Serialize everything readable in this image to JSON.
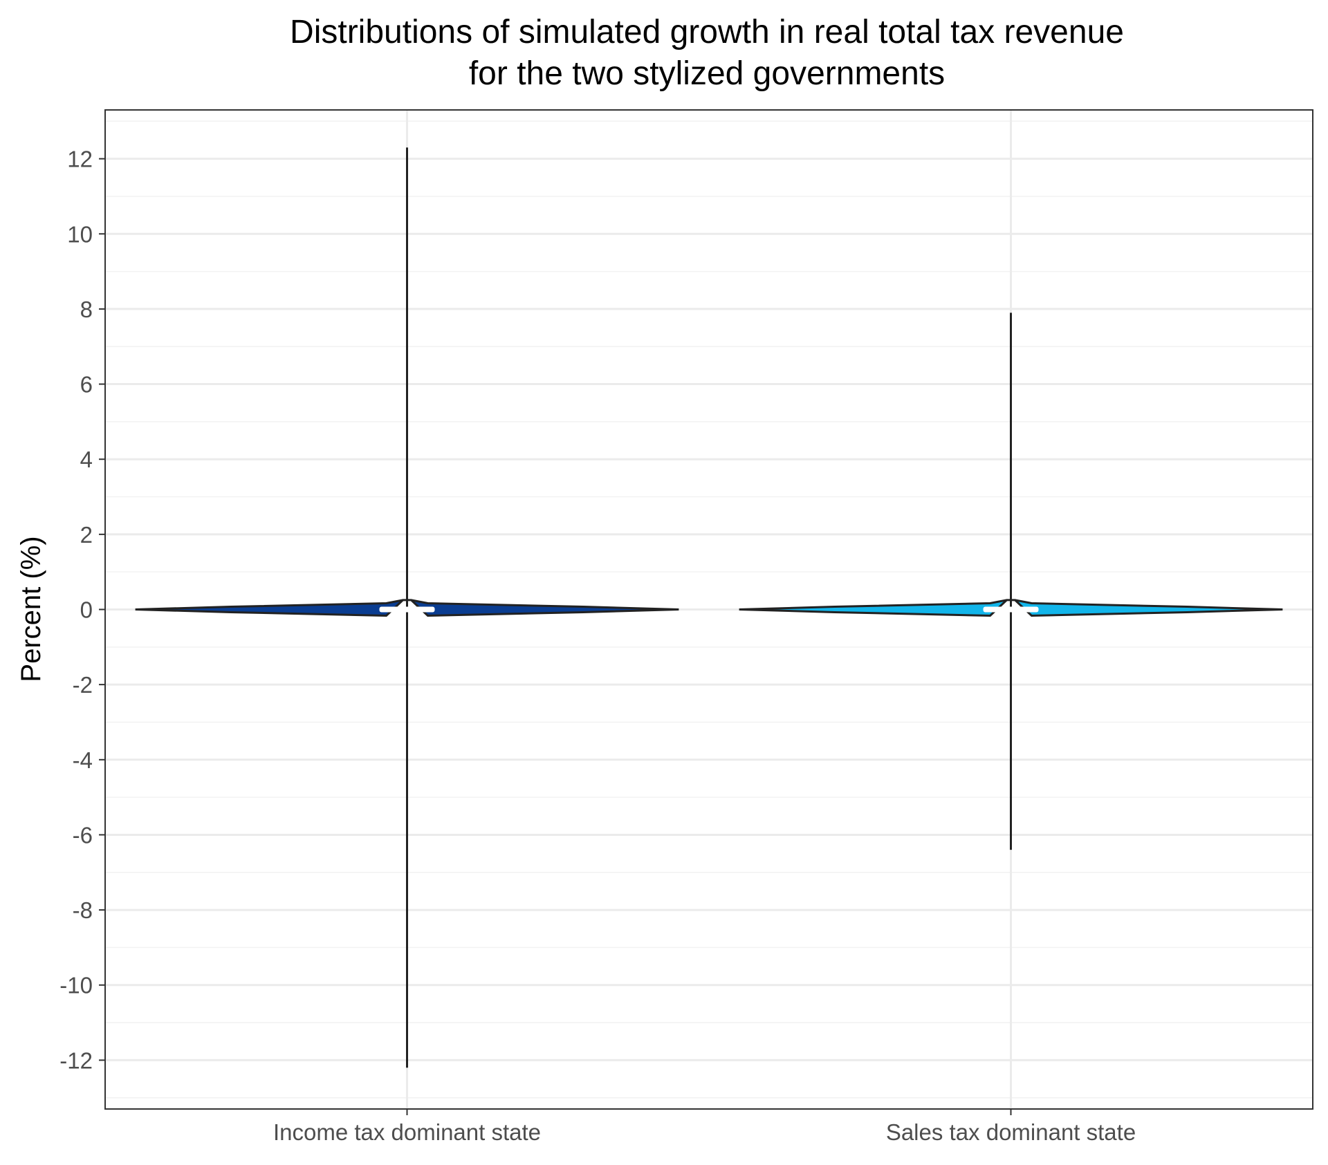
{
  "chart_data": {
    "type": "violin",
    "title_lines": [
      "Distributions of simulated growth in real total tax revenue",
      "for the two stylized governments"
    ],
    "xlabel": "",
    "ylabel": "Percent (%)",
    "ylim": [
      -13.3,
      13.3
    ],
    "yticks": [
      -12,
      -10,
      -8,
      -6,
      -4,
      -2,
      0,
      2,
      4,
      6,
      8,
      10,
      12
    ],
    "ytick_labels": [
      "-12",
      "-10",
      "-8",
      "-6",
      "-4",
      "-2",
      "0",
      "2",
      "4",
      "6",
      "8",
      "10",
      "12"
    ],
    "categories": [
      "Income tax dominant state",
      "Sales tax dominant state"
    ],
    "grid": true,
    "legend": "none",
    "series": [
      {
        "category": "Income tax dominant state",
        "color": "#0a3d91",
        "min": -12.2,
        "max": 12.3,
        "q1": -0.05,
        "median": 0.0,
        "q3": 0.05,
        "density_peak_relative_width": 1.0
      },
      {
        "category": "Sales tax dominant state",
        "color": "#12b5ea",
        "min": -6.4,
        "max": 7.9,
        "q1": -0.04,
        "median": 0.0,
        "q3": 0.04,
        "density_peak_relative_width": 1.0
      }
    ]
  }
}
